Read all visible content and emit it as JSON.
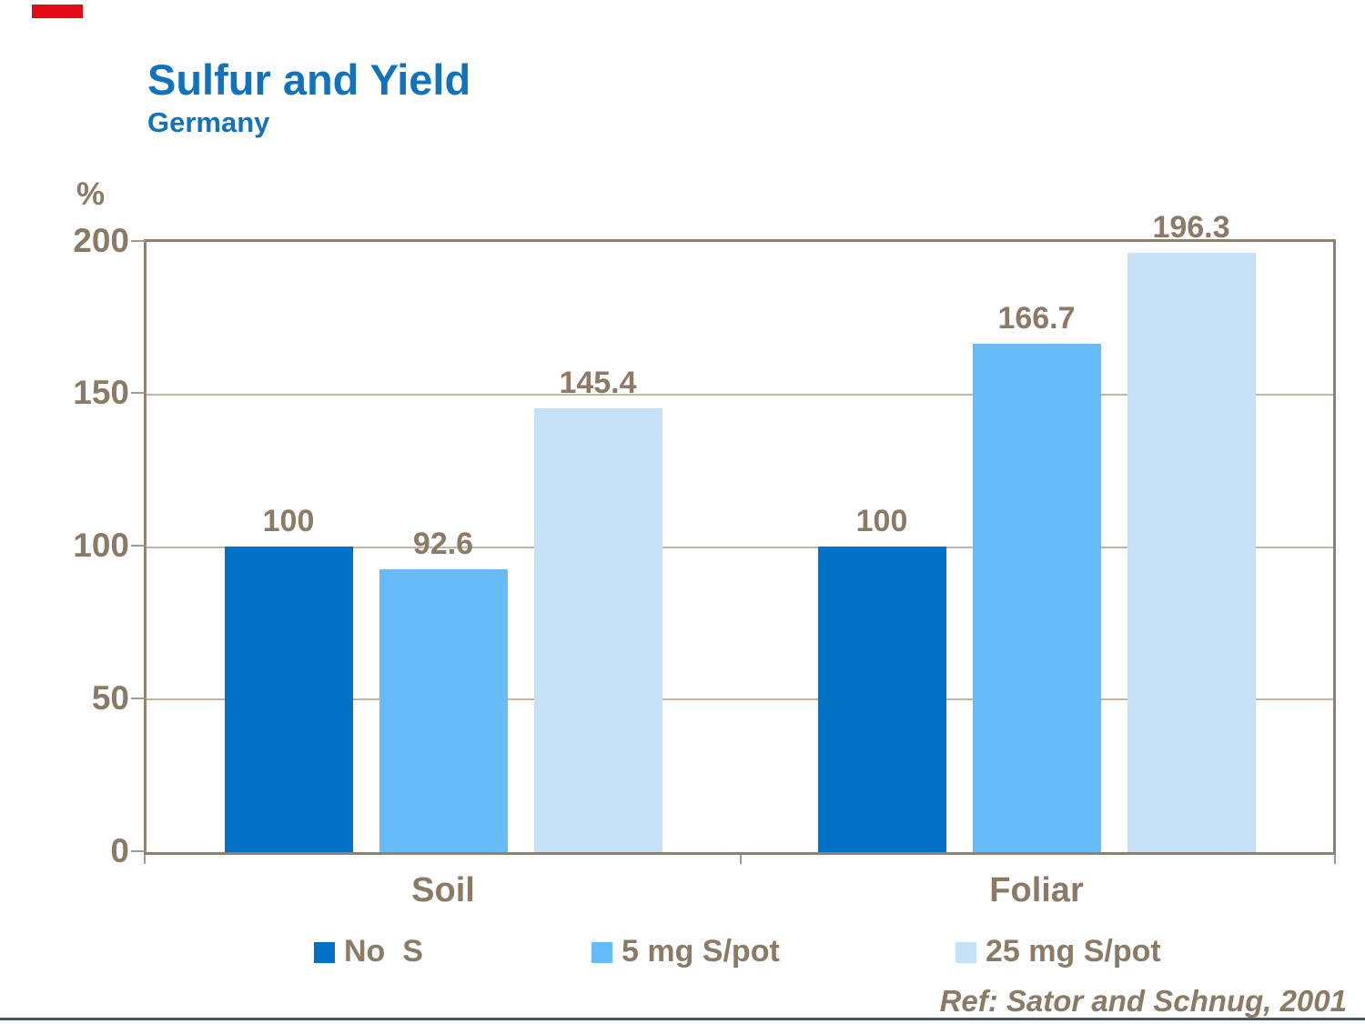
{
  "header": {
    "title": "Sulfur and Yield",
    "subtitle": "Germany"
  },
  "palette": {
    "title_blue": "#1173be",
    "text_brown": "#8b7a65",
    "axis_frame": "#8f8170",
    "gridline": "#c0b6a7",
    "tick": "#a59a89",
    "red_accent": "#e30b17",
    "bottom_rule": "#4a5663"
  },
  "chart_data": {
    "type": "bar",
    "title": "Sulfur and Yield",
    "subtitle": "Germany",
    "ylabel": "%",
    "xlabel": "",
    "ylim": [
      0,
      200
    ],
    "yticks": [
      "0",
      "50",
      "100",
      "150",
      "200"
    ],
    "grid": "horizontal",
    "legend_position": "bottom",
    "categories": [
      "Soil",
      "Foliar"
    ],
    "series": [
      {
        "name": "No  S",
        "color": "#0071c5",
        "values": [
          100,
          100
        ],
        "labels": [
          "100",
          "100"
        ]
      },
      {
        "name": "5 mg S/pot",
        "color": "#66bbf9",
        "values": [
          92.6,
          166.7
        ],
        "labels": [
          "92.6",
          "166.7"
        ]
      },
      {
        "name": "25 mg S/pot",
        "color": "#c4e1f8",
        "values": [
          145.4,
          196.3
        ],
        "labels": [
          "145.4",
          "196.3"
        ]
      }
    ]
  },
  "footer": {
    "ref": "Ref: Sator and Schnug, 2001"
  }
}
